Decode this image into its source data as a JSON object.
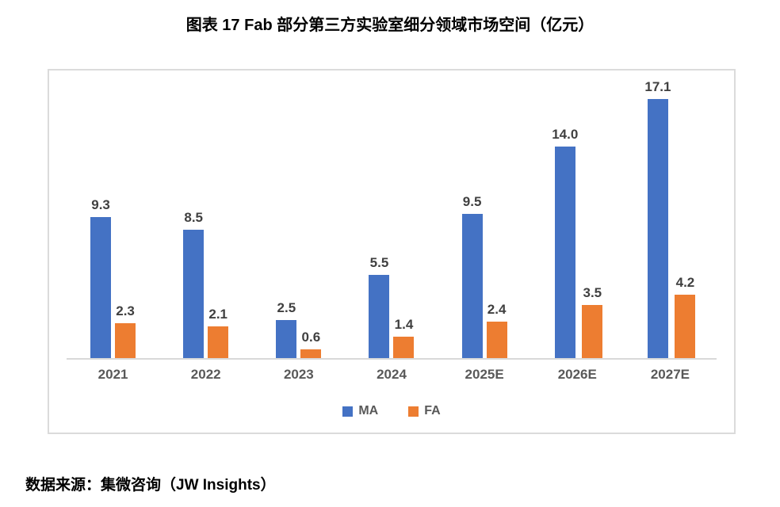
{
  "page": {
    "title": "图表 17 Fab 部分第三方实验室细分领域市场空间（亿元）",
    "source": "数据来源：集微咨询（JW Insights）"
  },
  "colors": {
    "ma_blue": "#4472C4",
    "fa_orange": "#ED7D31",
    "value_label": "#404040",
    "axis_label": "#595959",
    "axis_line": "#D9D9D9",
    "frame_border": "#DBDBDB",
    "legend_text": "#595959",
    "background": "#FFFFFF"
  },
  "chart_data": {
    "type": "bar",
    "title": "图表 17 Fab 部分第三方实验室细分领域市场空间（亿元）",
    "categories": [
      "2021",
      "2022",
      "2023",
      "2024",
      "2025E",
      "2026E",
      "2027E"
    ],
    "series": [
      {
        "name": "MA",
        "color": "#4472C4",
        "values": [
          9.3,
          8.5,
          2.5,
          5.5,
          9.5,
          14.0,
          17.1
        ]
      },
      {
        "name": "FA",
        "color": "#ED7D31",
        "values": [
          2.3,
          2.1,
          0.6,
          1.4,
          2.4,
          3.5,
          4.2
        ]
      }
    ],
    "xlabel": "",
    "ylabel": "",
    "ylim": [
      0,
      19
    ],
    "grid": false,
    "legend_position": "bottom",
    "data_labels": true,
    "value_format": "one_decimal"
  }
}
